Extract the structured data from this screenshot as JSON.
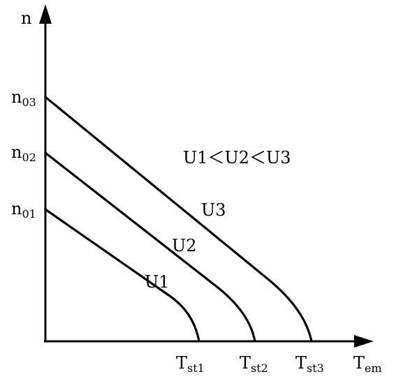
{
  "axes": {
    "y_label": "n",
    "x_label": {
      "main": "T",
      "sub": "em"
    }
  },
  "y_ticks": [
    {
      "main": "n",
      "sub": "03"
    },
    {
      "main": "n",
      "sub": "02"
    },
    {
      "main": "n",
      "sub": "01"
    }
  ],
  "x_ticks": [
    {
      "main": "T",
      "sub": "st1"
    },
    {
      "main": "T",
      "sub": "st2"
    },
    {
      "main": "T",
      "sub": "st3"
    }
  ],
  "curves": [
    {
      "name": "U1"
    },
    {
      "name": "U2"
    },
    {
      "name": "U3"
    }
  ],
  "relation": "U1＜U2＜U3"
}
